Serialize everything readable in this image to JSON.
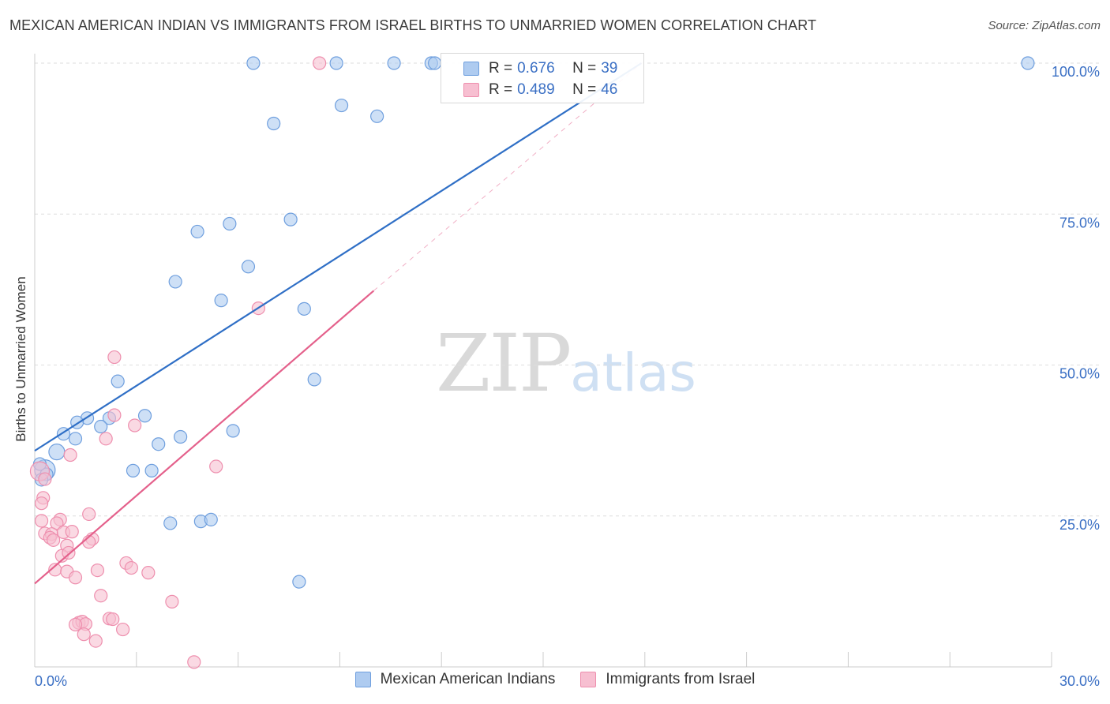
{
  "header": {
    "title": "MEXICAN AMERICAN INDIAN VS IMMIGRANTS FROM ISRAEL BIRTHS TO UNMARRIED WOMEN CORRELATION CHART",
    "source": "Source: ZipAtlas.com"
  },
  "watermark": {
    "zip": "ZIP",
    "atlas": "atlas"
  },
  "legend": {
    "series1": {
      "r_label": "R =",
      "r_value": "0.676",
      "n_label": "N =",
      "n_value": "39"
    },
    "series2": {
      "r_label": "R =",
      "r_value": "0.489",
      "n_label": "N =",
      "n_value": "46"
    }
  },
  "colors": {
    "blue_fill": "#aecbf0",
    "blue_stroke": "#6f9fde",
    "blue_line": "#2f6fc6",
    "pink_fill": "#f7bfd1",
    "pink_stroke": "#ee8fae",
    "pink_line": "#e4608b",
    "grid": "#dddddd",
    "axis_text": "#3a6fc4"
  },
  "chart_data": {
    "type": "scatter",
    "title": "MEXICAN AMERICAN INDIAN VS IMMIGRANTS FROM ISRAEL BIRTHS TO UNMARRIED WOMEN CORRELATION CHART",
    "xlabel": "",
    "ylabel": "Births to Unmarried Women",
    "xlim": [
      0,
      30
    ],
    "ylim": [
      0,
      102
    ],
    "x_tick_labels": [
      "0.0%",
      "30.0%"
    ],
    "y_ticks": [
      25,
      50,
      75,
      100
    ],
    "y_tick_labels": [
      "25.0%",
      "50.0%",
      "75.0%",
      "100.0%"
    ],
    "grid": true,
    "series": [
      {
        "name": "Mexican American Indians",
        "color": "#aecbf0",
        "points": [
          {
            "x": 6.45,
            "y": 100,
            "r": 8
          },
          {
            "x": 8.9,
            "y": 100,
            "r": 8
          },
          {
            "x": 10.6,
            "y": 100,
            "r": 8
          },
          {
            "x": 11.7,
            "y": 100,
            "r": 8
          },
          {
            "x": 11.8,
            "y": 100,
            "r": 8
          },
          {
            "x": 29.3,
            "y": 100,
            "r": 8
          },
          {
            "x": 9.05,
            "y": 93.0,
            "r": 8
          },
          {
            "x": 10.1,
            "y": 91.2,
            "r": 8
          },
          {
            "x": 7.05,
            "y": 90.0,
            "r": 8
          },
          {
            "x": 4.8,
            "y": 72.1,
            "r": 8
          },
          {
            "x": 5.75,
            "y": 73.4,
            "r": 8
          },
          {
            "x": 7.55,
            "y": 74.1,
            "r": 8
          },
          {
            "x": 6.3,
            "y": 66.3,
            "r": 8
          },
          {
            "x": 4.15,
            "y": 63.8,
            "r": 8
          },
          {
            "x": 5.5,
            "y": 60.7,
            "r": 8
          },
          {
            "x": 7.95,
            "y": 59.3,
            "r": 8
          },
          {
            "x": 8.25,
            "y": 47.6,
            "r": 8
          },
          {
            "x": 2.45,
            "y": 47.3,
            "r": 8
          },
          {
            "x": 2.2,
            "y": 41.2,
            "r": 8
          },
          {
            "x": 3.25,
            "y": 41.6,
            "r": 8
          },
          {
            "x": 1.55,
            "y": 41.2,
            "r": 8
          },
          {
            "x": 1.25,
            "y": 40.5,
            "r": 8
          },
          {
            "x": 1.95,
            "y": 39.8,
            "r": 8
          },
          {
            "x": 0.85,
            "y": 38.6,
            "r": 8
          },
          {
            "x": 1.2,
            "y": 37.8,
            "r": 8
          },
          {
            "x": 4.3,
            "y": 38.1,
            "r": 8
          },
          {
            "x": 5.85,
            "y": 39.1,
            "r": 8
          },
          {
            "x": 3.65,
            "y": 36.9,
            "r": 8
          },
          {
            "x": 0.65,
            "y": 35.6,
            "r": 10
          },
          {
            "x": 0.3,
            "y": 32.6,
            "r": 13
          },
          {
            "x": 0.35,
            "y": 31.9,
            "r": 8
          },
          {
            "x": 2.9,
            "y": 32.5,
            "r": 8
          },
          {
            "x": 3.45,
            "y": 32.5,
            "r": 8
          },
          {
            "x": 4.0,
            "y": 23.8,
            "r": 8
          },
          {
            "x": 4.9,
            "y": 24.1,
            "r": 8
          },
          {
            "x": 5.2,
            "y": 24.4,
            "r": 8
          },
          {
            "x": 7.8,
            "y": 14.1,
            "r": 8
          },
          {
            "x": 0.15,
            "y": 33.6,
            "r": 8
          },
          {
            "x": 0.2,
            "y": 31.0,
            "r": 8
          }
        ]
      },
      {
        "name": "Immigrants from Israel",
        "color": "#f7bfd1",
        "points": [
          {
            "x": 8.4,
            "y": 100,
            "r": 8
          },
          {
            "x": 6.6,
            "y": 59.4,
            "r": 8
          },
          {
            "x": 2.35,
            "y": 51.3,
            "r": 8
          },
          {
            "x": 2.35,
            "y": 41.7,
            "r": 8
          },
          {
            "x": 2.95,
            "y": 40.0,
            "r": 8
          },
          {
            "x": 2.1,
            "y": 37.8,
            "r": 8
          },
          {
            "x": 1.05,
            "y": 35.1,
            "r": 8
          },
          {
            "x": 5.35,
            "y": 33.2,
            "r": 8
          },
          {
            "x": 0.15,
            "y": 32.4,
            "r": 12
          },
          {
            "x": 0.3,
            "y": 31.1,
            "r": 8
          },
          {
            "x": 0.25,
            "y": 28.0,
            "r": 8
          },
          {
            "x": 0.2,
            "y": 27.1,
            "r": 8
          },
          {
            "x": 1.6,
            "y": 25.3,
            "r": 8
          },
          {
            "x": 0.2,
            "y": 24.2,
            "r": 8
          },
          {
            "x": 0.75,
            "y": 24.4,
            "r": 8
          },
          {
            "x": 0.65,
            "y": 23.8,
            "r": 8
          },
          {
            "x": 0.3,
            "y": 22.1,
            "r": 8
          },
          {
            "x": 0.5,
            "y": 22.0,
            "r": 8
          },
          {
            "x": 0.85,
            "y": 22.3,
            "r": 8
          },
          {
            "x": 1.1,
            "y": 22.4,
            "r": 8
          },
          {
            "x": 0.45,
            "y": 21.4,
            "r": 8
          },
          {
            "x": 1.7,
            "y": 21.2,
            "r": 8
          },
          {
            "x": 1.6,
            "y": 20.7,
            "r": 8
          },
          {
            "x": 0.95,
            "y": 20.1,
            "r": 8
          },
          {
            "x": 0.8,
            "y": 18.4,
            "r": 8
          },
          {
            "x": 2.7,
            "y": 17.2,
            "r": 8
          },
          {
            "x": 0.6,
            "y": 16.1,
            "r": 8
          },
          {
            "x": 0.95,
            "y": 15.8,
            "r": 8
          },
          {
            "x": 1.85,
            "y": 16.0,
            "r": 8
          },
          {
            "x": 2.85,
            "y": 16.4,
            "r": 8
          },
          {
            "x": 3.35,
            "y": 15.6,
            "r": 8
          },
          {
            "x": 1.2,
            "y": 14.8,
            "r": 8
          },
          {
            "x": 1.95,
            "y": 11.8,
            "r": 8
          },
          {
            "x": 4.05,
            "y": 10.8,
            "r": 8
          },
          {
            "x": 2.2,
            "y": 8.0,
            "r": 8
          },
          {
            "x": 2.3,
            "y": 7.9,
            "r": 8
          },
          {
            "x": 1.3,
            "y": 7.3,
            "r": 8
          },
          {
            "x": 1.4,
            "y": 7.5,
            "r": 8
          },
          {
            "x": 1.5,
            "y": 7.1,
            "r": 8
          },
          {
            "x": 1.2,
            "y": 7.0,
            "r": 8
          },
          {
            "x": 2.6,
            "y": 6.2,
            "r": 8
          },
          {
            "x": 1.45,
            "y": 5.4,
            "r": 8
          },
          {
            "x": 1.8,
            "y": 4.3,
            "r": 8
          },
          {
            "x": 4.7,
            "y": 0.8,
            "r": 8
          },
          {
            "x": 0.55,
            "y": 21.0,
            "r": 8
          },
          {
            "x": 1.0,
            "y": 18.9,
            "r": 8
          }
        ]
      }
    ],
    "trendlines": [
      {
        "series": "Mexican American Indians",
        "x0": 0,
        "y0": 35.8,
        "x1": 17.9,
        "y1": 100,
        "style": "solid"
      },
      {
        "series": "Immigrants from Israel",
        "x0": 0,
        "y0": 13.8,
        "x1": 10.0,
        "y1": 62.3,
        "style": "solid"
      },
      {
        "series": "Immigrants from Israel",
        "x0": 10.0,
        "y0": 62.3,
        "x1": 17.9,
        "y1": 100,
        "style": "dashed"
      }
    ]
  },
  "bottom_legend": {
    "item1": "Mexican American Indians",
    "item2": "Immigrants from Israel"
  }
}
